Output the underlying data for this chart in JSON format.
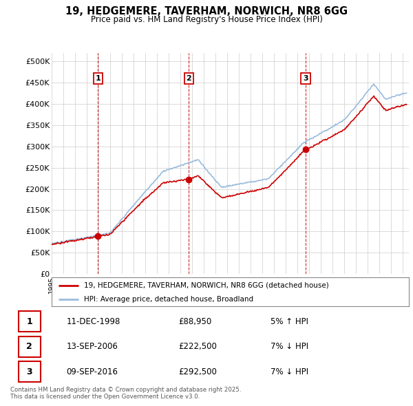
{
  "title": "19, HEDGEMERE, TAVERHAM, NORWICH, NR8 6GG",
  "subtitle": "Price paid vs. HM Land Registry's House Price Index (HPI)",
  "ylim": [
    0,
    520000
  ],
  "yticks": [
    0,
    50000,
    100000,
    150000,
    200000,
    250000,
    300000,
    350000,
    400000,
    450000,
    500000
  ],
  "ytick_labels": [
    "£0",
    "£50K",
    "£100K",
    "£150K",
    "£200K",
    "£250K",
    "£300K",
    "£350K",
    "£400K",
    "£450K",
    "£500K"
  ],
  "sale_points": [
    {
      "num": 1,
      "year": 1998.95,
      "price": 88950,
      "label": "1"
    },
    {
      "num": 2,
      "year": 2006.71,
      "price": 222500,
      "label": "2"
    },
    {
      "num": 3,
      "year": 2016.69,
      "price": 292500,
      "label": "3"
    }
  ],
  "sale_table": [
    {
      "num": 1,
      "date": "11-DEC-1998",
      "price": "£88,950",
      "hpi": "5% ↑ HPI"
    },
    {
      "num": 2,
      "date": "13-SEP-2006",
      "price": "£222,500",
      "hpi": "7% ↓ HPI"
    },
    {
      "num": 3,
      "date": "09-SEP-2016",
      "price": "£292,500",
      "hpi": "7% ↓ HPI"
    }
  ],
  "line_color_price": "#cc0000",
  "line_color_hpi": "#99bbdd",
  "background_color": "#ffffff",
  "grid_color": "#cccccc",
  "legend_label_price": "19, HEDGEMERE, TAVERHAM, NORWICH, NR8 6GG (detached house)",
  "legend_label_hpi": "HPI: Average price, detached house, Broadland",
  "footer": "Contains HM Land Registry data © Crown copyright and database right 2025.\nThis data is licensed under the Open Government Licence v3.0.",
  "dashed_line_color": "#cc0000",
  "sale_box_color": "#cc0000"
}
